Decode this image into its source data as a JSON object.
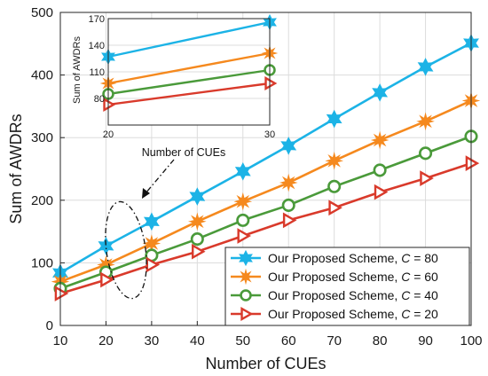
{
  "chart_data": [
    {
      "type": "line",
      "xlabel": "Number of CUEs",
      "ylabel": "Sum of AWDRs",
      "x": [
        10,
        20,
        30,
        40,
        50,
        60,
        70,
        80,
        90,
        100
      ],
      "xlim": [
        10,
        100
      ],
      "ylim": [
        0,
        500
      ],
      "xticks": [
        10,
        20,
        30,
        40,
        50,
        60,
        70,
        80,
        90,
        100
      ],
      "yticks": [
        0,
        100,
        200,
        300,
        400,
        500
      ],
      "grid": true,
      "legend_position": "bottom-right",
      "series": [
        {
          "name": "Our Proposed Scheme, C = 80",
          "label_prefix": "Our Proposed Scheme,",
          "label_var": "C",
          "label_eq": " = 80",
          "color": "#1cb3e6",
          "marker": "hexagram",
          "values": [
            84,
            127,
            166,
            206,
            246,
            287,
            330,
            372,
            413,
            451
          ]
        },
        {
          "name": "Our Proposed Scheme, C = 60",
          "label_prefix": "Our Proposed Scheme,",
          "label_var": "C",
          "label_eq": " = 60",
          "color": "#f5891e",
          "marker": "asterisk",
          "values": [
            70,
            97,
            131,
            166,
            198,
            228,
            263,
            296,
            326,
            359
          ]
        },
        {
          "name": "Our Proposed Scheme, C = 40",
          "label_prefix": "Our Proposed Scheme,",
          "label_var": "C",
          "label_eq": " = 40",
          "color": "#4a9a3a",
          "marker": "circle",
          "values": [
            59,
            85,
            112,
            138,
            168,
            192,
            222,
            248,
            275,
            302
          ]
        },
        {
          "name": "Our Proposed Scheme, C = 20",
          "label_prefix": "Our Proposed Scheme,",
          "label_var": "C",
          "label_eq": " = 20",
          "color": "#d93a2b",
          "marker": "triangle-right",
          "values": [
            51,
            73,
            97,
            118,
            143,
            168,
            188,
            213,
            235,
            259
          ]
        }
      ]
    },
    {
      "type": "line",
      "role": "inset",
      "xlabel": "",
      "ylabel": "Sum of AWDRs",
      "x": [
        20,
        30
      ],
      "xlim": [
        20,
        30
      ],
      "ylim": [
        50,
        170
      ],
      "xticks": [
        20,
        30
      ],
      "yticks": [
        80,
        110,
        140,
        170
      ],
      "grid": true,
      "series": [
        {
          "color": "#1cb3e6",
          "marker": "hexagram",
          "values": [
            127,
            166
          ]
        },
        {
          "color": "#f5891e",
          "marker": "asterisk",
          "values": [
            97,
            131
          ]
        },
        {
          "color": "#4a9a3a",
          "marker": "circle",
          "values": [
            85,
            112
          ]
        },
        {
          "color": "#d93a2b",
          "marker": "triangle-right",
          "values": [
            73,
            97
          ]
        }
      ]
    }
  ],
  "annotation": {
    "text": "Number of CUEs"
  }
}
